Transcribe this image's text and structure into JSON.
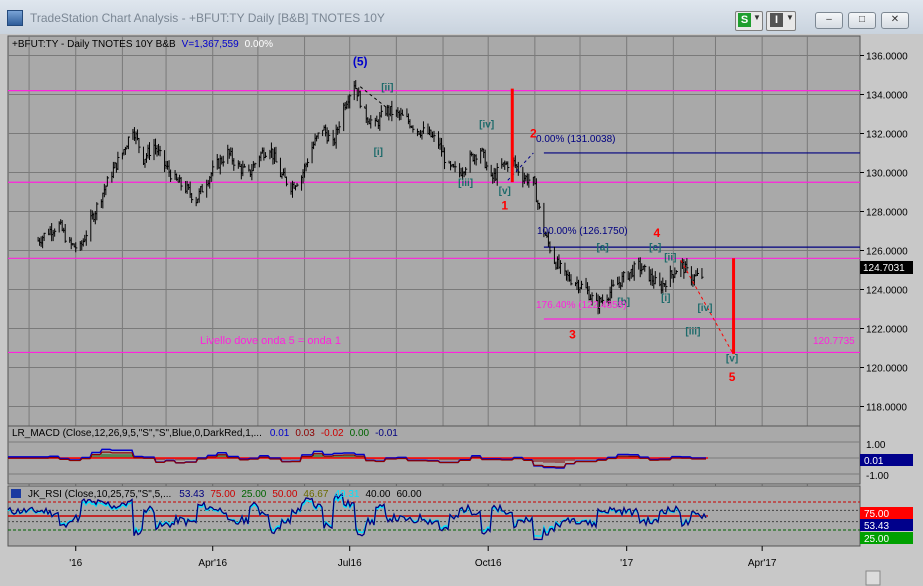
{
  "window": {
    "title": "TradeStation Chart Analysis - +BFUT:TY Daily [B&B] TNOTES 10Y",
    "btn_s": "S",
    "btn_i": "I",
    "minimize": "–",
    "maximize": "□",
    "close": "✕"
  },
  "header": {
    "symbol": "+BFUT:TY - Daily  TNOTES 10Y  B&B",
    "volume": "V=1,367,559",
    "pct": "0.00%"
  },
  "colors": {
    "plot_bg": "#a9a9a9",
    "grid": "#7a7a7a",
    "magenta": "#ff22dd",
    "navy": "#000080",
    "red": "#ff0000",
    "teal": "#1e6b6b",
    "blue": "#0000cc"
  },
  "chart_data": [
    {
      "type": "ohlc",
      "title": "",
      "y_axis": {
        "min": 117,
        "max": 137,
        "ticks": [
          "136.0000",
          "134.0000",
          "132.0000",
          "130.0000",
          "128.0000",
          "126.0000",
          "124.0000",
          "122.0000",
          "120.0000",
          "118.0000"
        ]
      },
      "x_axis": {
        "ticks": [
          "'16",
          "Apr'16",
          "Jul16",
          "Oct16",
          "'17",
          "Apr'17"
        ]
      },
      "last_price": "124.7031",
      "price_path": [
        [
          "2015-12-07",
          126.5
        ],
        [
          "2015-12-14",
          127.0
        ],
        [
          "2015-12-21",
          127.3
        ],
        [
          "2015-12-28",
          126.3
        ],
        [
          "2016-01-04",
          126.1
        ],
        [
          "2016-01-11",
          127.5
        ],
        [
          "2016-01-18",
          128.8
        ],
        [
          "2016-01-25",
          130.0
        ],
        [
          "2016-02-01",
          131.0
        ],
        [
          "2016-02-08",
          132.3
        ],
        [
          "2016-02-15",
          130.7
        ],
        [
          "2016-02-22",
          131.4
        ],
        [
          "2016-02-29",
          130.4
        ],
        [
          "2016-03-07",
          129.6
        ],
        [
          "2016-03-14",
          129.2
        ],
        [
          "2016-03-21",
          128.6
        ],
        [
          "2016-03-28",
          129.6
        ],
        [
          "2016-04-04",
          130.4
        ],
        [
          "2016-04-11",
          131.0
        ],
        [
          "2016-04-18",
          130.3
        ],
        [
          "2016-04-25",
          129.9
        ],
        [
          "2016-05-02",
          130.9
        ],
        [
          "2016-05-09",
          131.3
        ],
        [
          "2016-05-16",
          129.9
        ],
        [
          "2016-05-23",
          129.3
        ],
        [
          "2016-05-30",
          129.8
        ],
        [
          "2016-06-06",
          131.3
        ],
        [
          "2016-06-13",
          132.3
        ],
        [
          "2016-06-20",
          131.4
        ],
        [
          "2016-06-27",
          133.4
        ],
        [
          "2016-07-04",
          134.6
        ],
        [
          "2016-07-11",
          133.0
        ],
        [
          "2016-07-18",
          132.4
        ],
        [
          "2016-07-25",
          133.2
        ],
        [
          "2016-08-01",
          133.0
        ],
        [
          "2016-08-08",
          132.7
        ],
        [
          "2016-08-15",
          132.2
        ],
        [
          "2016-08-22",
          132.0
        ],
        [
          "2016-08-29",
          131.5
        ],
        [
          "2016-09-05",
          130.2
        ],
        [
          "2016-09-12",
          130.0
        ],
        [
          "2016-09-19",
          130.7
        ],
        [
          "2016-09-26",
          131.2
        ],
        [
          "2016-10-03",
          129.6
        ],
        [
          "2016-10-10",
          130.3
        ],
        [
          "2016-10-17",
          130.6
        ],
        [
          "2016-10-24",
          129.8
        ],
        [
          "2016-10-31",
          129.5
        ],
        [
          "2016-11-07",
          127.0
        ],
        [
          "2016-11-14",
          125.5
        ],
        [
          "2016-11-21",
          124.7
        ],
        [
          "2016-11-28",
          124.4
        ],
        [
          "2016-12-05",
          124.0
        ],
        [
          "2016-12-12",
          123.2
        ],
        [
          "2016-12-19",
          123.7
        ],
        [
          "2016-12-26",
          124.3
        ],
        [
          "2017-01-02",
          124.8
        ],
        [
          "2017-01-09",
          125.2
        ],
        [
          "2017-01-16",
          124.7
        ],
        [
          "2017-01-23",
          124.1
        ],
        [
          "2017-01-30",
          124.7
        ],
        [
          "2017-02-06",
          125.3
        ],
        [
          "2017-02-13",
          124.6
        ],
        [
          "2017-02-20",
          124.7
        ]
      ],
      "horizontal_lines": [
        {
          "y": 134.2,
          "color": "magenta"
        },
        {
          "y": 129.5,
          "color": "magenta"
        },
        {
          "y": 125.6,
          "color": "magenta"
        },
        {
          "y": 120.7735,
          "color": "magenta"
        },
        {
          "y": 131.0038,
          "color": "navy",
          "from": "2016-11-07"
        },
        {
          "y": 126.175,
          "color": "navy",
          "from": "2016-11-07"
        },
        {
          "y": 122.4858,
          "color": "magenta",
          "from": "2016-11-07"
        }
      ],
      "fib_labels": {
        "top": "0.00% (131.0038)",
        "mid": "100.00% (126.1750)",
        "ext": "176.40% (122.4858)"
      },
      "level_note": "Livello dove onda 5 = onda 1",
      "level_value": "120.7735",
      "wave_labels": [
        {
          "text": "(5)",
          "x": "2016-07-08",
          "y": 135.5,
          "color": "blue"
        },
        {
          "text": "[ii]",
          "x": "2016-07-26",
          "y": 134.2,
          "color": "teal"
        },
        {
          "text": "[i]",
          "x": "2016-07-20",
          "y": 130.9,
          "color": "teal"
        },
        {
          "text": "[iii]",
          "x": "2016-09-16",
          "y": 129.3,
          "color": "teal"
        },
        {
          "text": "[iv]",
          "x": "2016-09-30",
          "y": 132.3,
          "color": "teal"
        },
        {
          "text": "[v]",
          "x": "2016-10-12",
          "y": 128.9,
          "color": "teal"
        },
        {
          "text": "1",
          "x": "2016-10-12",
          "y": 128.1,
          "color": "red"
        },
        {
          "text": "2",
          "x": "2016-10-31",
          "y": 131.8,
          "color": "red"
        },
        {
          "text": "[a]",
          "x": "2016-12-16",
          "y": 126.0,
          "color": "teal"
        },
        {
          "text": "[b]",
          "x": "2016-12-30",
          "y": 123.2,
          "color": "teal"
        },
        {
          "text": "[c]",
          "x": "2017-01-20",
          "y": 126.0,
          "color": "teal"
        },
        {
          "text": "4",
          "x": "2017-01-21",
          "y": 126.7,
          "color": "red"
        },
        {
          "text": "[ii]",
          "x": "2017-01-30",
          "y": 125.5,
          "color": "teal"
        },
        {
          "text": "[i]",
          "x": "2017-01-27",
          "y": 123.4,
          "color": "teal"
        },
        {
          "text": "3",
          "x": "2016-11-26",
          "y": 121.5,
          "color": "red"
        },
        {
          "text": "[iv]",
          "x": "2017-02-22",
          "y": 122.9,
          "color": "teal"
        },
        {
          "text": "[iii]",
          "x": "2017-02-14",
          "y": 121.7,
          "color": "teal"
        },
        {
          "text": "[v]",
          "x": "2017-03-12",
          "y": 120.3,
          "color": "teal"
        },
        {
          "text": "5",
          "x": "2017-03-12",
          "y": 119.3,
          "color": "red"
        }
      ],
      "red_bars": [
        {
          "x": "2016-10-17",
          "y0": 134.3,
          "y1": 129.5
        },
        {
          "x": "2017-03-13",
          "y0": 125.6,
          "y1": 120.7
        }
      ],
      "projection": [
        [
          "2017-02-06",
          125.5
        ],
        [
          "2017-03-12",
          120.8
        ]
      ]
    },
    {
      "type": "line",
      "title": "LR_MACD (Close,12,26,9,5,\"S\",\"S\",Blue,0,DarkRed,1,...",
      "params": [
        "0.01",
        "0.03",
        "-0.02",
        "0.00",
        "-0.01"
      ],
      "y_axis": {
        "ticks": [
          "1.00",
          "-1.00"
        ]
      },
      "last_value": "0.01"
    },
    {
      "type": "line",
      "title": "JK_RSI (Close,10,25,75,\"S\",5,...",
      "params": [
        "53.43",
        "75.00",
        "25.00",
        "50.00",
        "46.67",
        "49.31",
        "40.00",
        "60.00"
      ],
      "y_axis": {
        "ticks": [
          "75.00",
          "25.00"
        ]
      },
      "last_value": "53.43"
    }
  ]
}
